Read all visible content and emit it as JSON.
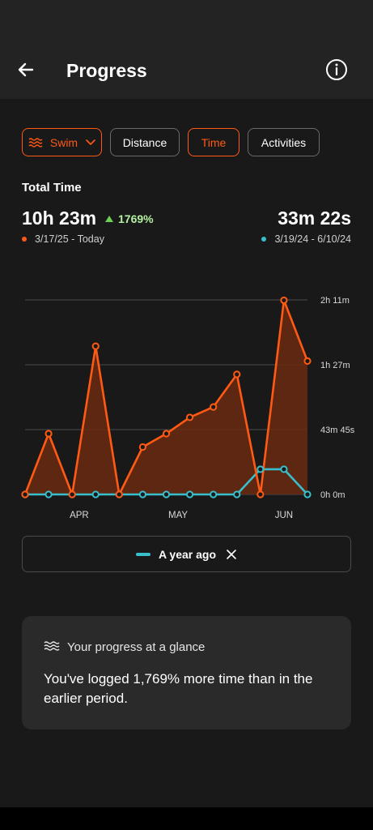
{
  "header": {
    "title": "Progress",
    "back_icon": "arrow-left-icon",
    "info_icon": "info-circle-icon"
  },
  "filters": {
    "sport": {
      "label": "Swim",
      "icon": "swim-waves-icon",
      "dropdown_icon": "chevron-down-icon"
    },
    "metrics": [
      {
        "label": "Distance",
        "selected": false
      },
      {
        "label": "Time",
        "selected": true
      },
      {
        "label": "Activities",
        "selected": false
      }
    ]
  },
  "summary": {
    "title": "Total Time",
    "current_total": "10h 23m",
    "change": "1769%",
    "current_range": "3/17/25 - Today",
    "previous_total": "33m 22s",
    "previous_range": "3/19/24 - 6/10/24"
  },
  "colors": {
    "current": "#ff5a14",
    "previous": "#39bfcc",
    "accent": "#ff5a14",
    "positive": "#6ecf55"
  },
  "chart_data": {
    "type": "area",
    "x_tick_labels": [
      "APR",
      "MAY",
      "JUN"
    ],
    "y_tick_labels": [
      "0h 0m",
      "43m 45s",
      "1h 27m",
      "2h 11m"
    ],
    "y_unit": "minutes",
    "ylim": [
      0,
      131.25
    ],
    "grid": true,
    "series": [
      {
        "name": "",
        "values": [
          0,
          41,
          0,
          100,
          0,
          32,
          41,
          52,
          59,
          81,
          0,
          131,
          90
        ]
      },
      {
        "name": "A year ago",
        "values": [
          0,
          0,
          0,
          0,
          0,
          0,
          0,
          0,
          0,
          0,
          17,
          17,
          0
        ]
      }
    ]
  },
  "legend": {
    "label": "A year ago",
    "close_icon": "close-x-icon"
  },
  "glance": {
    "icon": "swim-waves-icon",
    "title": "Your progress at a glance",
    "text": "You've logged 1,769% more time than in the earlier period."
  }
}
